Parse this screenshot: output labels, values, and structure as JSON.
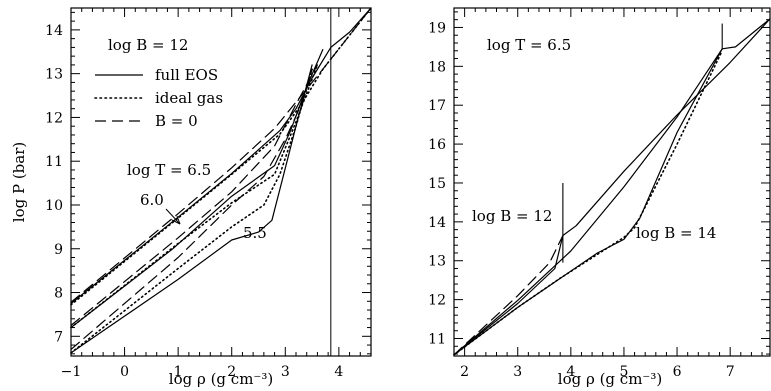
{
  "chart_data": [
    {
      "type": "line",
      "panel": "left",
      "xlabel": "log ρ  (g cm⁻³)",
      "ylabel": "log P  (bar)",
      "xlim": [
        -1,
        4.6
      ],
      "ylim": [
        6.55,
        14.5
      ],
      "xticks": [
        -1,
        0,
        1,
        2,
        3,
        4
      ],
      "yticks": [
        7,
        8,
        9,
        10,
        11,
        12,
        13,
        14
      ],
      "grid": false,
      "legend": {
        "placement": "top-left",
        "entries": [
          {
            "label": "full EOS",
            "style": "solid"
          },
          {
            "label": "ideal gas",
            "style": "dotted"
          },
          {
            "label": "B = 0",
            "style": "dashed"
          }
        ]
      },
      "annotations": {
        "field": "log B = 12",
        "t65": "log T = 6.5",
        "t60": "6.0",
        "t55": "5.5"
      },
      "vline_x": 3.85,
      "series": [
        {
          "style": "solid",
          "x": [
            -1,
            1,
            2,
            2.9,
            3.2,
            3.5,
            3.85,
            4.2,
            4.6
          ],
          "y": [
            7.75,
            9.72,
            10.72,
            11.7,
            12.2,
            12.9,
            13.6,
            13.95,
            14.5
          ]
        },
        {
          "style": "dotted",
          "x": [
            -1,
            1,
            2,
            2.9,
            3.3,
            3.7,
            4.6
          ],
          "y": [
            7.72,
            9.7,
            10.7,
            11.62,
            12.3,
            13.1,
            14.5
          ]
        },
        {
          "style": "dashed",
          "x": [
            -1,
            1,
            2,
            2.8,
            3.3,
            3.7,
            4.6
          ],
          "y": [
            7.78,
            9.8,
            10.85,
            11.75,
            12.5,
            13.1,
            14.5
          ]
        },
        {
          "style": "solid",
          "x": [
            -1,
            0.9,
            2,
            2.8,
            3.1,
            3.4,
            3.7
          ],
          "y": [
            7.2,
            9.0,
            10.2,
            10.9,
            11.7,
            12.7,
            13.55
          ]
        },
        {
          "style": "dotted",
          "x": [
            -1,
            1,
            2,
            2.8,
            3.2,
            3.6
          ],
          "y": [
            7.2,
            9.12,
            10.05,
            10.7,
            11.9,
            13.2
          ]
        },
        {
          "style": "dashed",
          "x": [
            -1,
            1,
            2,
            2.8,
            3.2,
            3.6
          ],
          "y": [
            7.25,
            9.25,
            10.3,
            11.35,
            12.3,
            13.2
          ]
        },
        {
          "style": "solid",
          "x": [
            -1,
            1,
            2,
            2.5,
            2.75,
            2.95,
            3.2,
            3.5
          ],
          "y": [
            6.62,
            8.3,
            9.2,
            9.38,
            9.65,
            10.6,
            11.8,
            13.2
          ]
        },
        {
          "style": "dotted",
          "x": [
            -1,
            1,
            2,
            2.6,
            2.9,
            3.2,
            3.5
          ],
          "y": [
            6.62,
            8.55,
            9.5,
            10.0,
            10.7,
            11.8,
            13.1
          ]
        },
        {
          "style": "dashed",
          "x": [
            -1,
            1,
            2,
            2.6,
            3.0,
            3.3,
            3.5
          ],
          "y": [
            6.7,
            8.8,
            10.0,
            10.65,
            11.5,
            12.3,
            13.1
          ]
        }
      ]
    },
    {
      "type": "line",
      "panel": "right",
      "xlabel": "log ρ  (g cm⁻³)",
      "ylabel": "",
      "xlim": [
        1.8,
        7.75
      ],
      "ylim": [
        10.55,
        19.5
      ],
      "xticks": [
        2,
        3,
        4,
        5,
        6,
        7
      ],
      "yticks": [
        11,
        12,
        13,
        14,
        15,
        16,
        17,
        18,
        19
      ],
      "grid": false,
      "annotations": {
        "temp": "log T = 6.5",
        "b12": "log B = 12",
        "b14": "log B = 14"
      },
      "series": [
        {
          "style": "solid",
          "x": [
            1.8,
            3,
            3.7,
            3.85,
            4.1,
            5,
            6,
            7,
            7.75
          ],
          "y": [
            10.58,
            11.9,
            12.8,
            13.65,
            13.9,
            15.3,
            16.75,
            18.1,
            19.22
          ]
        },
        {
          "style": "dashed",
          "x": [
            1.8,
            3,
            3.6,
            3.85
          ],
          "y": [
            10.58,
            12.1,
            12.95,
            13.65
          ]
        },
        {
          "style": "dotted",
          "x": [
            1.8,
            3,
            3.8,
            5,
            5.2,
            6,
            6.85
          ],
          "y": [
            10.58,
            11.8,
            12.55,
            13.6,
            13.85,
            16.0,
            18.4
          ]
        },
        {
          "style": "solid",
          "x": [
            1.8,
            3,
            4.5,
            5.0,
            5.3,
            6,
            6.85,
            7.1,
            7.75
          ],
          "y": [
            10.58,
            11.8,
            13.2,
            13.55,
            14.1,
            16.3,
            18.45,
            18.5,
            19.22
          ]
        },
        {
          "style": "solid",
          "x": [
            1.8,
            3,
            4,
            5,
            6,
            6.85
          ],
          "y": [
            10.58,
            11.98,
            13.25,
            14.9,
            16.7,
            18.45
          ]
        }
      ],
      "marker_lines": [
        {
          "x": 3.85,
          "y1": 12.95,
          "y2": 15.0
        },
        {
          "x": 6.85,
          "y1": 18.45,
          "y2": 19.1
        }
      ]
    }
  ]
}
